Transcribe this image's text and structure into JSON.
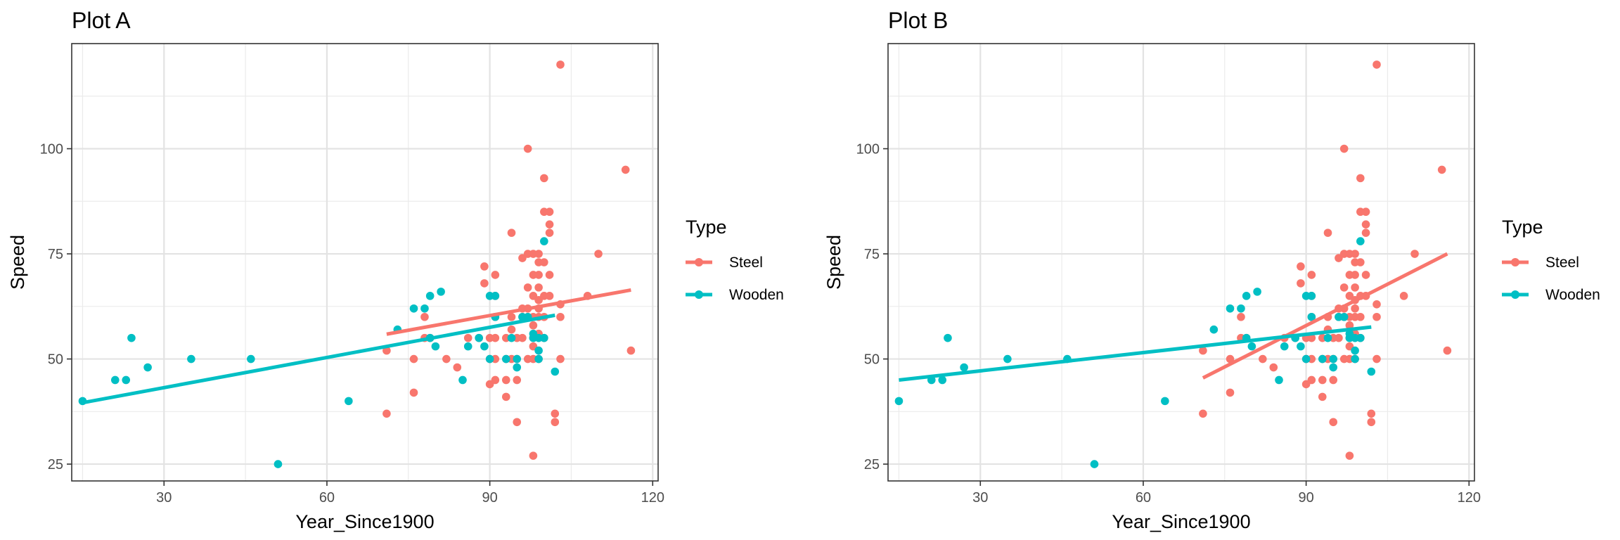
{
  "chart_data": [
    {
      "type": "scatter",
      "title": "Plot A",
      "xlabel": "Year_Since1900",
      "ylabel": "Speed",
      "xlim": [
        13,
        121
      ],
      "ylim": [
        21,
        125
      ],
      "xticks": [
        "30",
        "60",
        "90",
        "120"
      ],
      "yticks": [
        "25",
        "50",
        "75",
        "100"
      ],
      "legend": {
        "title": "Type",
        "position": "right",
        "entries": [
          "Steel",
          "Wooden"
        ]
      },
      "colors": {
        "Steel": "#F8766D",
        "Wooden": "#00BFC4"
      },
      "grid": true,
      "series": [
        {
          "name": "Steel",
          "points": [
            [
              71,
              37
            ],
            [
              71,
              52
            ],
            [
              76,
              42
            ],
            [
              76,
              50
            ],
            [
              78,
              55
            ],
            [
              78,
              60
            ],
            [
              79,
              55
            ],
            [
              82,
              50
            ],
            [
              84,
              48
            ],
            [
              86,
              55
            ],
            [
              88,
              55
            ],
            [
              89,
              68
            ],
            [
              89,
              72
            ],
            [
              90,
              44
            ],
            [
              90,
              50
            ],
            [
              90,
              55
            ],
            [
              91,
              45
            ],
            [
              91,
              50
            ],
            [
              91,
              55
            ],
            [
              91,
              60
            ],
            [
              91,
              65
            ],
            [
              91,
              70
            ],
            [
              93,
              41
            ],
            [
              93,
              45
            ],
            [
              93,
              50
            ],
            [
              93,
              55
            ],
            [
              94,
              50
            ],
            [
              94,
              60
            ],
            [
              94,
              57
            ],
            [
              94,
              80
            ],
            [
              95,
              35
            ],
            [
              95,
              45
            ],
            [
              95,
              50
            ],
            [
              95,
              55
            ],
            [
              96,
              55
            ],
            [
              96,
              60
            ],
            [
              96,
              62
            ],
            [
              96,
              74
            ],
            [
              97,
              50
            ],
            [
              97,
              60
            ],
            [
              97,
              62
            ],
            [
              97,
              67
            ],
            [
              97,
              75
            ],
            [
              97,
              100
            ],
            [
              98,
              27
            ],
            [
              98,
              50
            ],
            [
              98,
              53
            ],
            [
              98,
              55
            ],
            [
              98,
              58
            ],
            [
              98,
              60
            ],
            [
              98,
              65
            ],
            [
              98,
              70
            ],
            [
              98,
              75
            ],
            [
              99,
              50
            ],
            [
              99,
              56
            ],
            [
              99,
              60
            ],
            [
              99,
              62
            ],
            [
              99,
              64
            ],
            [
              99,
              67
            ],
            [
              99,
              70
            ],
            [
              99,
              73
            ],
            [
              99,
              75
            ],
            [
              100,
              55
            ],
            [
              100,
              60
            ],
            [
              100,
              65
            ],
            [
              100,
              73
            ],
            [
              100,
              85
            ],
            [
              100,
              93
            ],
            [
              101,
              65
            ],
            [
              101,
              70
            ],
            [
              101,
              80
            ],
            [
              101,
              82
            ],
            [
              101,
              85
            ],
            [
              102,
              35
            ],
            [
              102,
              37
            ],
            [
              103,
              50
            ],
            [
              103,
              60
            ],
            [
              103,
              63
            ],
            [
              103,
              120
            ],
            [
              108,
              65
            ],
            [
              110,
              75
            ],
            [
              115,
              95
            ],
            [
              116,
              52
            ]
          ],
          "fit": {
            "x": [
              71,
              116
            ],
            "y": [
              55.9,
              66.4
            ]
          }
        },
        {
          "name": "Wooden",
          "points": [
            [
              15,
              40
            ],
            [
              21,
              45
            ],
            [
              23,
              45
            ],
            [
              24,
              55
            ],
            [
              27,
              48
            ],
            [
              35,
              50
            ],
            [
              46,
              50
            ],
            [
              51,
              25
            ],
            [
              64,
              40
            ],
            [
              73,
              57
            ],
            [
              76,
              62
            ],
            [
              78,
              62
            ],
            [
              79,
              55
            ],
            [
              79,
              65
            ],
            [
              80,
              53
            ],
            [
              81,
              66
            ],
            [
              85,
              45
            ],
            [
              86,
              53
            ],
            [
              88,
              55
            ],
            [
              89,
              53
            ],
            [
              90,
              50
            ],
            [
              90,
              65
            ],
            [
              91,
              60
            ],
            [
              91,
              65
            ],
            [
              93,
              50
            ],
            [
              94,
              55
            ],
            [
              95,
              48
            ],
            [
              95,
              50
            ],
            [
              96,
              60
            ],
            [
              97,
              60
            ],
            [
              98,
              55
            ],
            [
              98,
              56
            ],
            [
              99,
              50
            ],
            [
              99,
              52
            ],
            [
              99,
              55
            ],
            [
              100,
              55
            ],
            [
              100,
              78
            ],
            [
              102,
              47
            ]
          ],
          "fit": {
            "x": [
              15,
              102
            ],
            "y": [
              39.6,
              60.4
            ]
          }
        }
      ]
    },
    {
      "type": "scatter",
      "title": "Plot B",
      "xlabel": "Year_Since1900",
      "ylabel": "Speed",
      "xlim": [
        13,
        121
      ],
      "ylim": [
        21,
        125
      ],
      "xticks": [
        "30",
        "60",
        "90",
        "120"
      ],
      "yticks": [
        "25",
        "50",
        "75",
        "100"
      ],
      "legend": {
        "title": "Type",
        "position": "right",
        "entries": [
          "Steel",
          "Wooden"
        ]
      },
      "colors": {
        "Steel": "#F8766D",
        "Wooden": "#00BFC4"
      },
      "grid": true,
      "series": [
        {
          "name": "Steel",
          "points": [
            [
              71,
              37
            ],
            [
              71,
              52
            ],
            [
              76,
              42
            ],
            [
              76,
              50
            ],
            [
              78,
              55
            ],
            [
              78,
              60
            ],
            [
              79,
              55
            ],
            [
              82,
              50
            ],
            [
              84,
              48
            ],
            [
              86,
              55
            ],
            [
              88,
              55
            ],
            [
              89,
              68
            ],
            [
              89,
              72
            ],
            [
              90,
              44
            ],
            [
              90,
              50
            ],
            [
              90,
              55
            ],
            [
              91,
              45
            ],
            [
              91,
              50
            ],
            [
              91,
              55
            ],
            [
              91,
              60
            ],
            [
              91,
              65
            ],
            [
              91,
              70
            ],
            [
              93,
              41
            ],
            [
              93,
              45
            ],
            [
              93,
              50
            ],
            [
              93,
              55
            ],
            [
              94,
              50
            ],
            [
              94,
              60
            ],
            [
              94,
              57
            ],
            [
              94,
              80
            ],
            [
              95,
              35
            ],
            [
              95,
              45
            ],
            [
              95,
              50
            ],
            [
              95,
              55
            ],
            [
              96,
              55
            ],
            [
              96,
              60
            ],
            [
              96,
              62
            ],
            [
              96,
              74
            ],
            [
              97,
              50
            ],
            [
              97,
              60
            ],
            [
              97,
              62
            ],
            [
              97,
              67
            ],
            [
              97,
              75
            ],
            [
              97,
              100
            ],
            [
              98,
              27
            ],
            [
              98,
              50
            ],
            [
              98,
              53
            ],
            [
              98,
              55
            ],
            [
              98,
              58
            ],
            [
              98,
              60
            ],
            [
              98,
              65
            ],
            [
              98,
              70
            ],
            [
              98,
              75
            ],
            [
              99,
              50
            ],
            [
              99,
              56
            ],
            [
              99,
              60
            ],
            [
              99,
              62
            ],
            [
              99,
              64
            ],
            [
              99,
              67
            ],
            [
              99,
              70
            ],
            [
              99,
              73
            ],
            [
              99,
              75
            ],
            [
              100,
              55
            ],
            [
              100,
              60
            ],
            [
              100,
              65
            ],
            [
              100,
              73
            ],
            [
              100,
              85
            ],
            [
              100,
              93
            ],
            [
              101,
              65
            ],
            [
              101,
              70
            ],
            [
              101,
              80
            ],
            [
              101,
              82
            ],
            [
              101,
              85
            ],
            [
              102,
              35
            ],
            [
              102,
              37
            ],
            [
              103,
              50
            ],
            [
              103,
              60
            ],
            [
              103,
              63
            ],
            [
              103,
              120
            ],
            [
              108,
              65
            ],
            [
              110,
              75
            ],
            [
              115,
              95
            ],
            [
              116,
              52
            ]
          ],
          "fit": {
            "x": [
              71,
              116
            ],
            "y": [
              45.5,
              75
            ]
          }
        },
        {
          "name": "Wooden",
          "points": [
            [
              15,
              40
            ],
            [
              21,
              45
            ],
            [
              23,
              45
            ],
            [
              24,
              55
            ],
            [
              27,
              48
            ],
            [
              35,
              50
            ],
            [
              46,
              50
            ],
            [
              51,
              25
            ],
            [
              64,
              40
            ],
            [
              73,
              57
            ],
            [
              76,
              62
            ],
            [
              78,
              62
            ],
            [
              79,
              55
            ],
            [
              79,
              65
            ],
            [
              80,
              53
            ],
            [
              81,
              66
            ],
            [
              85,
              45
            ],
            [
              86,
              53
            ],
            [
              88,
              55
            ],
            [
              89,
              53
            ],
            [
              90,
              50
            ],
            [
              90,
              65
            ],
            [
              91,
              60
            ],
            [
              91,
              65
            ],
            [
              93,
              50
            ],
            [
              94,
              55
            ],
            [
              95,
              48
            ],
            [
              95,
              50
            ],
            [
              96,
              60
            ],
            [
              97,
              60
            ],
            [
              98,
              55
            ],
            [
              98,
              56
            ],
            [
              99,
              50
            ],
            [
              99,
              52
            ],
            [
              99,
              55
            ],
            [
              100,
              55
            ],
            [
              100,
              78
            ],
            [
              102,
              47
            ]
          ],
          "fit": {
            "x": [
              15,
              102
            ],
            "y": [
              45,
              57.6
            ]
          }
        }
      ]
    }
  ]
}
